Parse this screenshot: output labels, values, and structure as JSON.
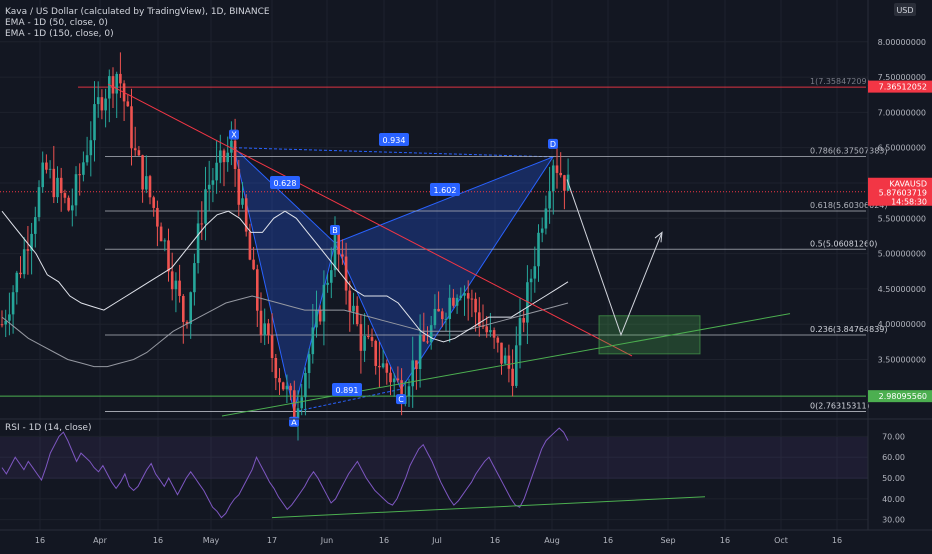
{
  "header": {
    "title_line": "Kava / US Dollar (calculated by TradingView), 1D, BINANCE",
    "indicators": [
      "EMA - 1D (50, close, 0)",
      "EMA - 1D (150, close, 0)"
    ]
  },
  "currency_badge": "USD",
  "colors": {
    "background": "#131722",
    "up": "#26a69a",
    "down": "#ef5350",
    "fib_top": "#f23645",
    "fib_bottom": "#4caf50",
    "pattern": "#2962ff",
    "rsi": "#7e57c2",
    "ema50": "#e0e3eb",
    "ema150": "#9598a1"
  },
  "chart_data": {
    "type": "line",
    "price_axis": {
      "ticks": [
        "8.00000000",
        "7.50000000",
        "7.00000000",
        "6.50000000",
        "6.00000000",
        "5.50000000",
        "5.00000000",
        "4.50000000",
        "4.00000000",
        "3.50000000"
      ],
      "tick_values": [
        8.0,
        7.5,
        7.0,
        6.5,
        6.0,
        5.5,
        5.0,
        4.5,
        4.0,
        3.5
      ],
      "range": [
        2.7,
        8.45
      ]
    },
    "time_axis": {
      "labels": [
        "16",
        "Apr",
        "16",
        "May",
        "17",
        "Jun",
        "16",
        "Jul",
        "16",
        "Aug",
        "16",
        "Sep",
        "16",
        "Oct",
        "16"
      ]
    },
    "price_tags": [
      {
        "label": "7.36512052",
        "value": 7.365,
        "color": "#f23645"
      },
      {
        "label": "KAVAUSD",
        "value": 5.876,
        "color": "#f23645"
      },
      {
        "label": "5.87603719",
        "value": 5.876,
        "color": "#f23645"
      },
      {
        "label": "14:58:30",
        "value": 5.876,
        "color": "#f23645"
      },
      {
        "label": "2.98095560",
        "value": 2.981,
        "color": "#4caf50"
      }
    ],
    "fib_levels": [
      {
        "label": "1(7.35847209)",
        "value": 7.358
      },
      {
        "label": "0.786(6.37507383)",
        "value": 6.375
      },
      {
        "label": "0.618(5.60306024)",
        "value": 5.603
      },
      {
        "label": "0.5(5.06081260)",
        "value": 5.061
      },
      {
        "label": "0.236(3.84764839)",
        "value": 3.848
      },
      {
        "label": "0(2.76315311)",
        "value": 2.763
      }
    ],
    "harmonic_points": [
      {
        "name": "X",
        "value": 6.5
      },
      {
        "name": "A",
        "value": 2.76
      },
      {
        "name": "B",
        "value": 5.15
      },
      {
        "name": "C",
        "value": 3.08
      },
      {
        "name": "D",
        "value": 6.37
      }
    ],
    "ratios": [
      "0.934",
      "0.628",
      "1.602",
      "0.891"
    ],
    "ema50": [
      5.6,
      5.4,
      5.2,
      5.0,
      4.7,
      4.6,
      4.4,
      4.3,
      4.25,
      4.2,
      4.3,
      4.4,
      4.5,
      4.6,
      4.7,
      4.8,
      5.0,
      5.2,
      5.4,
      5.55,
      5.6,
      5.5,
      5.3,
      5.3,
      5.5,
      5.6,
      5.5,
      5.3,
      5.1,
      4.9,
      4.7,
      4.5,
      4.4,
      4.4,
      4.4,
      4.3,
      4.1,
      3.9,
      3.8,
      3.75,
      3.8,
      3.9,
      4.0,
      4.1,
      4.1,
      4.1,
      4.2,
      4.3,
      4.4,
      4.5,
      4.6
    ],
    "ema150": [
      4.1,
      3.95,
      3.8,
      3.7,
      3.6,
      3.5,
      3.45,
      3.4,
      3.4,
      3.45,
      3.5,
      3.6,
      3.75,
      3.9,
      4.0,
      4.1,
      4.2,
      4.3,
      4.35,
      4.4,
      4.35,
      4.3,
      4.25,
      4.2,
      4.2,
      4.2,
      4.2,
      4.15,
      4.1,
      4.05,
      4.0,
      3.95,
      3.9,
      3.9,
      3.9,
      3.9,
      3.95,
      4.0,
      4.05,
      4.1,
      4.15,
      4.2,
      4.25,
      4.3
    ],
    "rsi": {
      "title": "RSI - 1D (14, close)",
      "ticks": [
        "70.00",
        "60.00",
        "50.00",
        "40.00",
        "30.00"
      ],
      "tick_values": [
        70,
        60,
        50,
        40,
        30
      ],
      "range": [
        26,
        75
      ],
      "values": [
        55,
        52,
        56,
        60,
        57,
        54,
        58,
        55,
        52,
        49,
        55,
        62,
        66,
        70,
        72,
        68,
        63,
        58,
        62,
        60,
        58,
        55,
        53,
        56,
        52,
        48,
        45,
        48,
        52,
        46,
        44,
        46,
        50,
        54,
        57,
        52,
        49,
        46,
        50,
        46,
        42,
        46,
        50,
        53,
        50,
        47,
        44,
        40,
        36,
        34,
        31,
        33,
        37,
        40,
        42,
        46,
        50,
        54,
        60,
        56,
        52,
        48,
        45,
        41,
        38,
        35,
        37,
        40,
        43,
        46,
        50,
        53,
        50,
        46,
        42,
        38,
        40,
        44,
        48,
        52,
        55,
        58,
        54,
        50,
        47,
        44,
        42,
        40,
        38,
        37,
        40,
        45,
        50,
        56,
        60,
        64,
        66,
        62,
        58,
        53,
        48,
        44,
        40,
        37,
        39,
        42,
        45,
        48,
        52,
        55,
        58,
        60,
        56,
        52,
        48,
        44,
        40,
        37,
        36,
        40,
        46,
        52,
        58,
        64,
        68,
        70,
        72,
        74,
        72,
        68
      ]
    }
  }
}
